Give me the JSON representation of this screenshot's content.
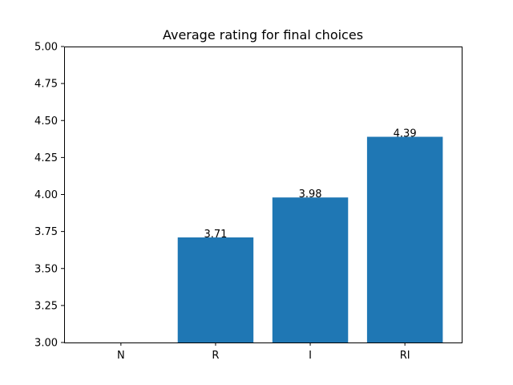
{
  "chart_data": {
    "type": "bar",
    "title": "Average rating for final choices",
    "xlabel": "",
    "ylabel": "",
    "categories": [
      "N",
      "R",
      "I",
      "RI"
    ],
    "values": [
      null,
      3.71,
      3.98,
      4.39
    ],
    "data_labels": [
      "",
      "3.71",
      "3.98",
      "4.39"
    ],
    "ylim": [
      3.0,
      5.0
    ],
    "yticks": [
      3.0,
      3.25,
      3.5,
      3.75,
      4.0,
      4.25,
      4.5,
      4.75,
      5.0
    ],
    "ytick_labels": [
      "3.00",
      "3.25",
      "3.50",
      "3.75",
      "4.00",
      "4.25",
      "4.50",
      "4.75",
      "5.00"
    ],
    "grid": false,
    "bar_color": "#1f77b4"
  }
}
